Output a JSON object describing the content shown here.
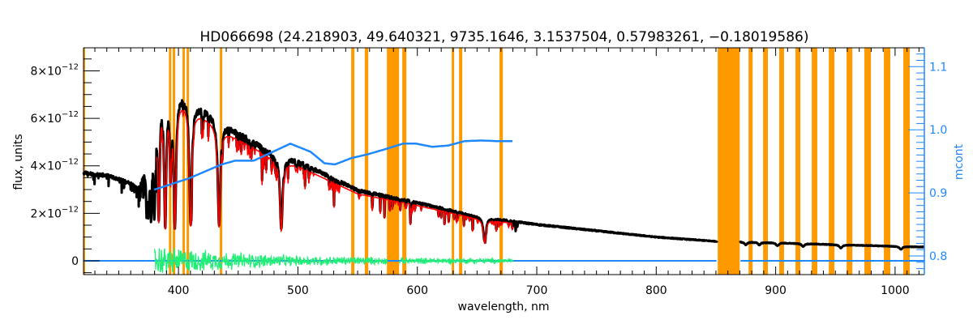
{
  "chart_data": {
    "type": "line",
    "title": "HD066698   (24.218903, 49.640321, 9735.1646, 3.1537504, 0.57983261, −0.18019586)",
    "xlabel": "wavelength, nm",
    "ylabel": "flux, units",
    "y2label": "mcont",
    "xlim": [
      320.5,
      1024.5
    ],
    "ylim": [
      -0.58,
      8.97
    ],
    "y2lim": [
      0.7705,
      1.1299
    ],
    "y_scale_exponent": -12,
    "x_ticks": [
      400,
      500,
      600,
      700,
      800,
      900,
      1000
    ],
    "x_tick_labels": [
      "400",
      "500",
      "600",
      "700",
      "800",
      "900",
      "1000"
    ],
    "y_ticks": [
      0,
      2,
      4,
      6,
      8
    ],
    "y_tick_labels": [
      {
        "mant": "0",
        "exp": ""
      },
      {
        "mant": "2×10",
        "exp": "−12"
      },
      {
        "mant": "4×10",
        "exp": "−12"
      },
      {
        "mant": "6×10",
        "exp": "−12"
      },
      {
        "mant": "8×10",
        "exp": "−12"
      }
    ],
    "y2_ticks": [
      0.8,
      0.9,
      1.0,
      1.1
    ],
    "y2_tick_labels": [
      "0.8",
      "0.9",
      "1.0",
      "1.1"
    ],
    "grid": false,
    "colors": {
      "observed": "#000000",
      "model": "#ff0000",
      "mcont": "#1e88ff",
      "residual": "#22ee77",
      "zero_line": "#1e88ff",
      "band": "#ff9900",
      "axis2": "#1e88ff"
    },
    "observed_continuum": [
      [
        320.5,
        3.7
      ],
      [
        340,
        3.6
      ],
      [
        360,
        3.3
      ],
      [
        366,
        3.1
      ],
      [
        370,
        3.6
      ],
      [
        375,
        4.8
      ],
      [
        380,
        6.6
      ],
      [
        385,
        7.7
      ],
      [
        390,
        7.6
      ],
      [
        400,
        7.2
      ],
      [
        410,
        7.05
      ],
      [
        415,
        6.6
      ],
      [
        430,
        6.1
      ],
      [
        440,
        5.7
      ],
      [
        460,
        5.1
      ],
      [
        480,
        4.5
      ],
      [
        500,
        4.2
      ],
      [
        550,
        2.97
      ],
      [
        600,
        2.45
      ],
      [
        650,
        1.87
      ],
      [
        700,
        1.53
      ],
      [
        800,
        1.0
      ],
      [
        850,
        0.82
      ],
      [
        900,
        0.76
      ],
      [
        950,
        0.68
      ],
      [
        1024.5,
        0.58
      ]
    ],
    "observed_gaps": [
      [
        851.5,
        869.9
      ]
    ],
    "absorption_lines": [
      {
        "name": "H-alpha",
        "center": 656.3,
        "depth": 0.55,
        "width": 1.3
      },
      {
        "name": "H-beta",
        "center": 486.1,
        "depth": 0.7,
        "width": 1.3
      },
      {
        "name": "H-gamma",
        "center": 434.0,
        "depth": 0.75,
        "width": 1.3
      },
      {
        "name": "H-delta",
        "center": 410.2,
        "depth": 0.78,
        "width": 1.3
      },
      {
        "name": "H-epsilon",
        "center": 397.0,
        "depth": 0.8,
        "width": 1.2
      },
      {
        "name": "Ca II K",
        "center": 393.4,
        "depth": 0.5,
        "width": 0.8
      },
      {
        "name": "H8",
        "center": 388.9,
        "depth": 0.8,
        "width": 1.1
      },
      {
        "name": "H9",
        "center": 383.5,
        "depth": 0.75,
        "width": 1.0
      },
      {
        "name": "H10",
        "center": 379.8,
        "depth": 0.7,
        "width": 0.9
      },
      {
        "name": "H11",
        "center": 377.1,
        "depth": 0.65,
        "width": 0.8
      },
      {
        "name": "H12",
        "center": 375.0,
        "depth": 0.6,
        "width": 0.7
      },
      {
        "name": "H13",
        "center": 373.4,
        "depth": 0.55,
        "width": 0.6
      },
      {
        "name": "Pa",
        "center": 875.0,
        "depth": 0.15,
        "width": 1.2
      },
      {
        "name": "Pa",
        "center": 886.3,
        "depth": 0.15,
        "width": 1.2
      },
      {
        "name": "Pa",
        "center": 901.5,
        "depth": 0.17,
        "width": 1.3
      },
      {
        "name": "Pa",
        "center": 923.0,
        "depth": 0.17,
        "width": 1.3
      },
      {
        "name": "Pa",
        "center": 954.6,
        "depth": 0.2,
        "width": 1.4
      },
      {
        "name": "Pa",
        "center": 1004.9,
        "depth": 0.2,
        "width": 1.5
      }
    ],
    "model_range": [
      382,
      680
    ],
    "model_offset": 0.15,
    "mcont": [
      [
        379.6,
        0.905
      ],
      [
        408.8,
        0.923
      ],
      [
        436,
        0.945
      ],
      [
        447.5,
        0.951
      ],
      [
        463,
        0.951
      ],
      [
        476.7,
        0.963
      ],
      [
        493.7,
        0.978
      ],
      [
        510.7,
        0.965
      ],
      [
        522.2,
        0.947
      ],
      [
        531,
        0.945
      ],
      [
        544.6,
        0.955
      ],
      [
        558.2,
        0.961
      ],
      [
        574.5,
        0.97
      ],
      [
        588,
        0.978
      ],
      [
        598.9,
        0.978
      ],
      [
        612.5,
        0.973
      ],
      [
        626,
        0.975
      ],
      [
        639.6,
        0.982
      ],
      [
        653.2,
        0.983
      ],
      [
        666.8,
        0.982
      ],
      [
        679.7,
        0.982
      ]
    ],
    "residual_range": [
      380,
      680
    ],
    "residual_gaps": [
      [
        575,
        585
      ]
    ],
    "residual_amplitude": [
      [
        380,
        0.75
      ],
      [
        410,
        0.55
      ],
      [
        450,
        0.4
      ],
      [
        500,
        0.25
      ],
      [
        600,
        0.15
      ],
      [
        680,
        0.12
      ]
    ],
    "exclusion_bands": [
      [
        319.5,
        321.5
      ],
      [
        392,
        394
      ],
      [
        395.2,
        397.3
      ],
      [
        403.4,
        405.4
      ],
      [
        406.8,
        408.8
      ],
      [
        434.6,
        436.7
      ],
      [
        544.6,
        547.3
      ],
      [
        556,
        558.9
      ],
      [
        574.5,
        584.7
      ],
      [
        587.4,
        590.8
      ],
      [
        628.8,
        630.8
      ],
      [
        634.9,
        637.6
      ],
      [
        668.8,
        671.6
      ],
      [
        851.5,
        869.9
      ],
      [
        877.3,
        880.7
      ],
      [
        889.5,
        893.5
      ],
      [
        903,
        907
      ],
      [
        916.6,
        920.7
      ],
      [
        930.2,
        934.9
      ],
      [
        944.5,
        949.2
      ],
      [
        959.4,
        964.2
      ],
      [
        974.3,
        979.8
      ],
      [
        990.6,
        996
      ],
      [
        1006.9,
        1012.3
      ]
    ]
  }
}
